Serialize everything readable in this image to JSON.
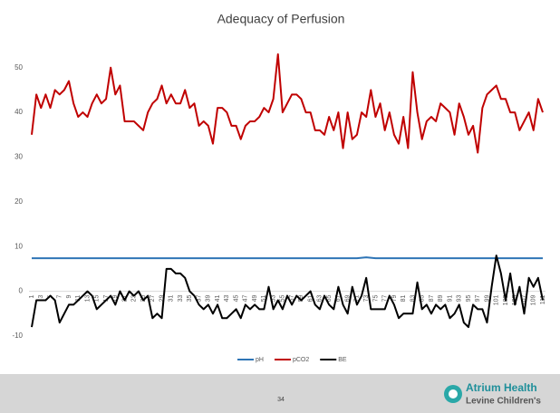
{
  "chart_data": {
    "type": "line",
    "title": "Adequacy of Perfusion",
    "categories": [
      1,
      null,
      3,
      null,
      5,
      null,
      7,
      null,
      9,
      null,
      11,
      null,
      13,
      null,
      15,
      null,
      17,
      null,
      19,
      null,
      21,
      null,
      23,
      null,
      25,
      null,
      27,
      null,
      29,
      null,
      31,
      null,
      33,
      null,
      35,
      null,
      37,
      null,
      39,
      null,
      41,
      null,
      43,
      null,
      45,
      null,
      47,
      null,
      49,
      null,
      51,
      null,
      53,
      null,
      55,
      null,
      57,
      null,
      59,
      null,
      61,
      null,
      63,
      null,
      65,
      null,
      67,
      null,
      69,
      null,
      71,
      null,
      73,
      null,
      75,
      null,
      77,
      null,
      79,
      null,
      81,
      null,
      83,
      null,
      85,
      null,
      87,
      null,
      89,
      null,
      91,
      null,
      93,
      null,
      95,
      null,
      97,
      null,
      99,
      null,
      101,
      null,
      103,
      null,
      105,
      null,
      107,
      null,
      109,
      null,
      111
    ],
    "series": [
      {
        "name": "pH",
        "color": "#2e75b6",
        "values": [
          7.4,
          7.4,
          7.4,
          7.4,
          7.4,
          7.4,
          7.4,
          7.4,
          7.4,
          7.4,
          7.4,
          7.4,
          7.4,
          7.4,
          7.4,
          7.4,
          7.4,
          7.4,
          7.4,
          7.4,
          7.4,
          7.4,
          7.4,
          7.4,
          7.4,
          7.4,
          7.4,
          7.4,
          7.4,
          7.4,
          7.4,
          7.4,
          7.4,
          7.4,
          7.4,
          7.4,
          7.4,
          7.4,
          7.4,
          7.4,
          7.4,
          7.4,
          7.4,
          7.4,
          7.4,
          7.4,
          7.4,
          7.4,
          7.4,
          7.4,
          7.4,
          7.4,
          7.4,
          7.4,
          7.4,
          7.4,
          7.4,
          7.4,
          7.4,
          7.4,
          7.4,
          7.4,
          7.4,
          7.4,
          7.4,
          7.4,
          7.4,
          7.4,
          7.4,
          7.4,
          7.4,
          7.5,
          7.6,
          7.5,
          7.4,
          7.4,
          7.4,
          7.4,
          7.4,
          7.4,
          7.4,
          7.4,
          7.4,
          7.4,
          7.4,
          7.4,
          7.4,
          7.4,
          7.4,
          7.4,
          7.4,
          7.4,
          7.4,
          7.4,
          7.4,
          7.4,
          7.4,
          7.4,
          7.4,
          7.4,
          7.4,
          7.4,
          7.4,
          7.4,
          7.4,
          7.4,
          7.4,
          7.4,
          7.4,
          7.4,
          7.4
        ]
      },
      {
        "name": "pCO2",
        "color": "#c00000",
        "values": [
          35,
          44,
          41,
          44,
          41,
          45,
          44,
          45,
          47,
          42,
          39,
          40,
          39,
          42,
          44,
          42,
          43,
          50,
          44,
          46,
          38,
          38,
          38,
          37,
          36,
          40,
          42,
          43,
          46,
          42,
          44,
          42,
          42,
          45,
          41,
          42,
          37,
          38,
          37,
          33,
          41,
          41,
          40,
          37,
          37,
          34,
          37,
          38,
          38,
          39,
          41,
          40,
          43,
          53,
          40,
          42,
          44,
          44,
          43,
          40,
          40,
          36,
          36,
          35,
          39,
          36,
          40,
          32,
          40,
          34,
          35,
          40,
          39,
          45,
          39,
          42,
          36,
          40,
          35,
          33,
          39,
          32,
          49,
          40,
          34,
          38,
          39,
          38,
          42,
          41,
          40,
          35,
          42,
          39,
          35,
          37,
          31,
          41,
          44,
          45,
          46,
          43,
          43,
          40,
          40,
          36,
          38,
          40,
          36,
          43,
          40
        ]
      },
      {
        "name": "BE",
        "color": "#000000",
        "values": [
          -8,
          -2,
          -2,
          -2,
          -1,
          -2,
          -7,
          -5,
          -3,
          -3,
          -2,
          -1,
          0,
          -1,
          -4,
          -3,
          -2,
          -1,
          -3,
          0,
          -2,
          0,
          -1,
          0,
          -2,
          -1,
          -6,
          -5,
          -6,
          5,
          5,
          4,
          4,
          3,
          0,
          -1,
          -3,
          -4,
          -3,
          -5,
          -3,
          -6,
          -6,
          -5,
          -4,
          -6,
          -3,
          -4,
          -3,
          -4,
          -4,
          1,
          -4,
          -2,
          -4,
          -1,
          -3,
          -1,
          -2,
          -1,
          0,
          -3,
          -4,
          -1,
          -3,
          -4,
          1,
          -3,
          -5,
          1,
          -3,
          -1,
          3,
          -4,
          -4,
          -4,
          -4,
          -1,
          -3,
          -6,
          -5,
          -5,
          -5,
          2,
          -4,
          -3,
          -5,
          -3,
          -4,
          -3,
          -6,
          -5,
          -3,
          -7,
          -8,
          -3,
          -4,
          -4,
          -7,
          1,
          8,
          4,
          -2,
          4,
          -3,
          1,
          -5,
          3,
          1,
          3,
          -2
        ]
      }
    ],
    "ylim": [
      -10,
      55
    ],
    "yticks": [
      -10,
      0,
      10,
      20,
      30,
      40,
      50
    ],
    "grid": false,
    "legend": "bottom"
  },
  "footer": {
    "page": "34",
    "brand": "Atrium Health",
    "sub": "Levine Children's"
  }
}
